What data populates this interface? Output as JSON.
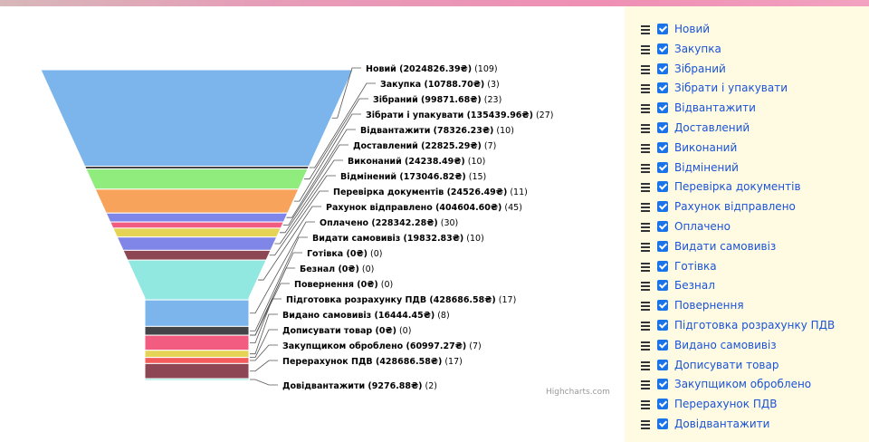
{
  "credits": "Highcharts.com",
  "chart_data": {
    "type": "funnel",
    "currency": "₴",
    "series": [
      {
        "name": "Новий",
        "amount": "2024826.39",
        "count": 109,
        "color": "#7cb5ec"
      },
      {
        "name": "Закупка",
        "amount": "10788.70",
        "count": 3,
        "color": "#434348"
      },
      {
        "name": "Зібраний",
        "amount": "99871.68",
        "count": 23,
        "color": "#90ed7d"
      },
      {
        "name": "Зібрати і упакувати",
        "amount": "135439.96",
        "count": 27,
        "color": "#f7a35c"
      },
      {
        "name": "Відвантажити",
        "amount": "78326.23",
        "count": 10,
        "color": "#8085e9"
      },
      {
        "name": "Доставлений",
        "amount": "22825.29",
        "count": 7,
        "color": "#f15c80"
      },
      {
        "name": "Виконаний",
        "amount": "24238.49",
        "count": 10,
        "color": "#e4d354"
      },
      {
        "name": "Відмінений",
        "amount": "173046.82",
        "count": 15,
        "color": "#8085e8"
      },
      {
        "name": "Перевірка документів",
        "amount": "24526.49",
        "count": 11,
        "color": "#8d4653"
      },
      {
        "name": "Рахунок відправлено",
        "amount": "404604.60",
        "count": 45,
        "color": "#91e8e1"
      },
      {
        "name": "Оплачено",
        "amount": "228342.28",
        "count": 30,
        "color": "#7cb5ec"
      },
      {
        "name": "Видати самовивіз",
        "amount": "19832.83",
        "count": 10,
        "color": "#434348"
      },
      {
        "name": "Готівка",
        "amount": "0",
        "count": 0,
        "color": "#90ed7d"
      },
      {
        "name": "Безнал",
        "amount": "0",
        "count": 0,
        "color": "#f7a35c"
      },
      {
        "name": "Повернення",
        "amount": "0",
        "count": 0,
        "color": "#8085e9"
      },
      {
        "name": "Підготовка розрахунку ПДВ",
        "amount": "428686.58",
        "count": 17,
        "color": "#f15c80"
      },
      {
        "name": "Видано самовивіз",
        "amount": "16444.45",
        "count": 8,
        "color": "#e4d354"
      },
      {
        "name": "Дописувати товар",
        "amount": "0",
        "count": 0,
        "color": "#2b908f"
      },
      {
        "name": "Закупщиком оброблено",
        "amount": "60997.27",
        "count": 7,
        "color": "#f45b5b"
      },
      {
        "name": "Перерахунок ПДВ",
        "amount": "428686.58",
        "count": 17,
        "color": "#8d4653"
      },
      {
        "name": "Довідвантажити",
        "amount": "9276.88",
        "count": 2,
        "color": "#91e8e1"
      }
    ],
    "legend_placement": "right"
  },
  "legend": {
    "items": [
      {
        "label": "Новий",
        "checked": true
      },
      {
        "label": "Закупка",
        "checked": true
      },
      {
        "label": "Зібраний",
        "checked": true
      },
      {
        "label": "Зібрати і упакувати",
        "checked": true
      },
      {
        "label": "Відвантажити",
        "checked": true
      },
      {
        "label": "Доставлений",
        "checked": true
      },
      {
        "label": "Виконаний",
        "checked": true
      },
      {
        "label": "Відмінений",
        "checked": true
      },
      {
        "label": "Перевірка документів",
        "checked": true
      },
      {
        "label": "Рахунок відправлено",
        "checked": true
      },
      {
        "label": "Оплачено",
        "checked": true
      },
      {
        "label": "Видати самовивіз",
        "checked": true
      },
      {
        "label": "Готівка",
        "checked": true
      },
      {
        "label": "Безнал",
        "checked": true
      },
      {
        "label": "Повернення",
        "checked": true
      },
      {
        "label": "Підготовка розрахунку ПДВ",
        "checked": true
      },
      {
        "label": "Видано самовивіз",
        "checked": true
      },
      {
        "label": "Дописувати товар",
        "checked": true
      },
      {
        "label": "Закупщиком оброблено",
        "checked": true
      },
      {
        "label": "Перерахунок ПДВ",
        "checked": true
      },
      {
        "label": "Довідвантажити",
        "checked": true
      }
    ]
  }
}
